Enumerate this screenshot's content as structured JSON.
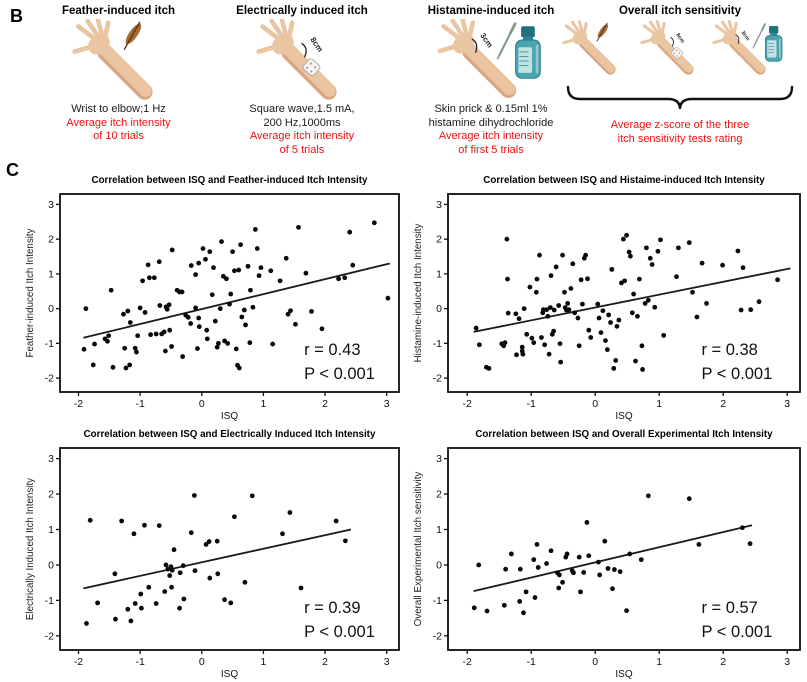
{
  "panel_b": {
    "label": "B",
    "accent_red": "#ee1111",
    "skin_color": "#eac5a2",
    "bottle_color": "#49a4b0",
    "items": [
      {
        "title": "Feather-induced itch",
        "icon": "arm-with-feather",
        "black": "Wrist to elbow;1 Hz",
        "red": "Average itch intensity\nof 10 trials",
        "icon_label": ""
      },
      {
        "title": "Electrically induced itch",
        "icon": "arm-with-electrode",
        "black": "Square wave,1.5 mA,\n200 Hz,1000ms",
        "red": "Average itch intensity\nof 5 trials",
        "icon_label": "8cm"
      },
      {
        "title": "Histamine-induced itch",
        "icon": "arm-with-skin-prick-and-bottle",
        "black": "Skin prick & 0.15ml 1%\nhistamine dihydrochloride",
        "red": "Average itch intensity\nof first 5 trials",
        "icon_label": "3cm"
      },
      {
        "title": "Overall itch sensitivity",
        "icon": "three-arms-with-brace",
        "black": "",
        "red": "Average z-score of the three\nitch sensitivity tests rating",
        "icon_label": ""
      }
    ]
  },
  "panel_c": {
    "label": "C"
  },
  "chart_data": [
    {
      "type": "scatter",
      "title": "Correlation between ISQ and Feather-induced Itch Intensity",
      "xlabel": "ISQ",
      "ylabel": "Feather-induced Itch Intensity",
      "xlim": [
        -2.3,
        3.2
      ],
      "ylim": [
        -2.4,
        3.3
      ],
      "xticks": [
        -2,
        -1,
        0,
        1,
        2,
        3
      ],
      "yticks": [
        -2,
        -1,
        0,
        1,
        2,
        3
      ],
      "grid": false,
      "legend": false,
      "r_label": "r = 0.43",
      "p_label": "P < 0.001",
      "trendline": {
        "x1": -1.92,
        "y1": -0.84,
        "x2": 3.05,
        "y2": 1.3
      },
      "points": [
        [
          -1.88,
          0.0
        ],
        [
          -1.91,
          -1.17
        ],
        [
          -1.74,
          -1.02
        ],
        [
          -1.76,
          -1.62
        ],
        [
          -1.57,
          -0.87
        ],
        [
          -1.53,
          -0.94
        ],
        [
          -1.51,
          -0.78
        ],
        [
          -1.44,
          -1.69
        ],
        [
          -1.47,
          0.53
        ],
        [
          -1.27,
          -0.16
        ],
        [
          -1.25,
          -1.14
        ],
        [
          -1.23,
          -1.71
        ],
        [
          -1.2,
          -0.07
        ],
        [
          -1.16,
          -0.4
        ],
        [
          -1.17,
          -1.62
        ],
        [
          -1.08,
          -1.14
        ],
        [
          -1.06,
          -1.25
        ],
        [
          -1.04,
          -0.78
        ],
        [
          -1.0,
          0.02
        ],
        [
          -0.96,
          0.8
        ],
        [
          -0.92,
          -0.11
        ],
        [
          -0.87,
          1.26
        ],
        [
          -0.85,
          0.89
        ],
        [
          -0.83,
          -0.75
        ],
        [
          -0.77,
          0.89
        ],
        [
          -0.74,
          -0.73
        ],
        [
          -0.69,
          1.35
        ],
        [
          -0.68,
          0.09
        ],
        [
          -0.65,
          -0.73
        ],
        [
          -0.61,
          -0.67
        ],
        [
          -0.59,
          -1.22
        ],
        [
          -0.58,
          0.05
        ],
        [
          -0.56,
          -0.02
        ],
        [
          -0.53,
          0.11
        ],
        [
          -0.52,
          -0.62
        ],
        [
          -0.49,
          -1.09
        ],
        [
          -0.48,
          1.69
        ],
        [
          -0.4,
          0.53
        ],
        [
          -0.36,
          0.48
        ],
        [
          -0.32,
          0.48
        ],
        [
          -0.31,
          -1.38
        ],
        [
          -0.26,
          -0.19
        ],
        [
          -0.22,
          -0.25
        ],
        [
          -0.18,
          -0.43
        ],
        [
          -0.17,
          1.24
        ],
        [
          -0.1,
          0.98
        ],
        [
          -0.1,
          0.02
        ],
        [
          -0.07,
          -1.15
        ],
        [
          -0.05,
          1.31
        ],
        [
          -0.05,
          -0.27
        ],
        [
          -0.04,
          -0.52
        ],
        [
          0.02,
          1.73
        ],
        [
          0.06,
          1.42
        ],
        [
          0.08,
          -0.62
        ],
        [
          0.09,
          -0.87
        ],
        [
          0.13,
          1.64
        ],
        [
          0.17,
          0.4
        ],
        [
          0.19,
          1.18
        ],
        [
          0.22,
          -0.36
        ],
        [
          0.25,
          -1.11
        ],
        [
          0.27,
          -1.0
        ],
        [
          0.3,
          0.0
        ],
        [
          0.32,
          1.93
        ],
        [
          0.35,
          0.93
        ],
        [
          0.37,
          -0.93
        ],
        [
          0.4,
          0.86
        ],
        [
          0.42,
          -1.0
        ],
        [
          0.45,
          0.13
        ],
        [
          0.47,
          0.42
        ],
        [
          0.5,
          1.64
        ],
        [
          0.53,
          1.09
        ],
        [
          0.56,
          -1.16
        ],
        [
          0.58,
          -1.63
        ],
        [
          0.6,
          1.11
        ],
        [
          0.61,
          -1.71
        ],
        [
          0.63,
          1.84
        ],
        [
          0.65,
          -0.24
        ],
        [
          0.69,
          -0.04
        ],
        [
          0.71,
          -0.47
        ],
        [
          0.75,
          1.22
        ],
        [
          0.78,
          -0.98
        ],
        [
          0.79,
          0.53
        ],
        [
          0.83,
          0.04
        ],
        [
          0.87,
          2.28
        ],
        [
          0.9,
          1.73
        ],
        [
          0.93,
          0.95
        ],
        [
          0.96,
          1.18
        ],
        [
          1.12,
          1.09
        ],
        [
          1.15,
          -1.02
        ],
        [
          1.27,
          0.8
        ],
        [
          1.37,
          1.45
        ],
        [
          1.4,
          -0.16
        ],
        [
          1.44,
          -0.06
        ],
        [
          1.52,
          -0.45
        ],
        [
          1.57,
          2.34
        ],
        [
          1.69,
          1.02
        ],
        [
          1.78,
          -0.08
        ],
        [
          1.95,
          -0.58
        ],
        [
          2.22,
          0.86
        ],
        [
          2.32,
          0.89
        ],
        [
          2.4,
          2.2
        ],
        [
          2.45,
          1.25
        ],
        [
          2.8,
          2.47
        ],
        [
          3.02,
          0.3
        ]
      ]
    },
    {
      "type": "scatter",
      "title": "Correlation between ISQ and Histaime-induced Itch Intensity",
      "xlabel": "ISQ",
      "ylabel": "Histamine-induced Itch Intensity",
      "xlim": [
        -2.3,
        3.2
      ],
      "ylim": [
        -2.4,
        3.3
      ],
      "xticks": [
        -2,
        -1,
        0,
        1,
        2,
        3
      ],
      "yticks": [
        -2,
        -1,
        0,
        1,
        2,
        3
      ],
      "grid": false,
      "legend": false,
      "r_label": "r = 0.38",
      "p_label": "P < 0.001",
      "trendline": {
        "x1": -1.9,
        "y1": -0.67,
        "x2": 3.05,
        "y2": 1.16
      },
      "points": [
        [
          -1.86,
          -0.56
        ],
        [
          -1.81,
          -1.04
        ],
        [
          -1.7,
          -1.69
        ],
        [
          -1.66,
          -1.72
        ],
        [
          -1.46,
          -1.01
        ],
        [
          -1.43,
          -1.07
        ],
        [
          -1.41,
          -0.98
        ],
        [
          -1.38,
          2.0
        ],
        [
          -1.37,
          0.85
        ],
        [
          -1.36,
          -0.13
        ],
        [
          -1.24,
          -0.15
        ],
        [
          -1.23,
          -1.33
        ],
        [
          -1.19,
          -0.29
        ],
        [
          -1.14,
          -1.11
        ],
        [
          -1.14,
          -1.22
        ],
        [
          -1.13,
          -1.31
        ],
        [
          -1.11,
          0.0
        ],
        [
          -1.07,
          -0.74
        ],
        [
          -1.02,
          0.62
        ],
        [
          -0.99,
          -0.85
        ],
        [
          -0.96,
          -0.98
        ],
        [
          -0.92,
          0.47
        ],
        [
          -0.91,
          0.85
        ],
        [
          -0.87,
          1.54
        ],
        [
          -0.84,
          -0.83
        ],
        [
          -0.82,
          -0.12
        ],
        [
          -0.81,
          -0.03
        ],
        [
          -0.79,
          -1.04
        ],
        [
          -0.76,
          -0.03
        ],
        [
          -0.74,
          -0.22
        ],
        [
          -0.72,
          -1.31
        ],
        [
          -0.7,
          0.03
        ],
        [
          -0.69,
          0.95
        ],
        [
          -0.67,
          -0.74
        ],
        [
          -0.65,
          -0.65
        ],
        [
          -0.64,
          -0.04
        ],
        [
          -0.61,
          1.2
        ],
        [
          -0.57,
          0.09
        ],
        [
          -0.55,
          -1.01
        ],
        [
          -0.54,
          -1.54
        ],
        [
          -0.51,
          1.54
        ],
        [
          -0.48,
          0.47
        ],
        [
          -0.47,
          0.03
        ],
        [
          -0.45,
          -0.04
        ],
        [
          -0.43,
          0.15
        ],
        [
          -0.41,
          -0.03
        ],
        [
          -0.38,
          0.58
        ],
        [
          -0.35,
          1.29
        ],
        [
          -0.32,
          -0.12
        ],
        [
          -0.27,
          -0.27
        ],
        [
          -0.25,
          -1.07
        ],
        [
          -0.22,
          0.83
        ],
        [
          -0.2,
          0.13
        ],
        [
          -0.17,
          1.45
        ],
        [
          -0.15,
          1.54
        ],
        [
          -0.12,
          0.86
        ],
        [
          -0.1,
          -0.62
        ],
        [
          -0.07,
          -0.83
        ],
        [
          0.04,
          0.13
        ],
        [
          0.06,
          -0.27
        ],
        [
          0.09,
          -0.69
        ],
        [
          0.12,
          -0.06
        ],
        [
          0.16,
          -0.92
        ],
        [
          0.19,
          -1.18
        ],
        [
          0.21,
          -0.18
        ],
        [
          0.24,
          -0.4
        ],
        [
          0.26,
          1.13
        ],
        [
          0.29,
          -1.72
        ],
        [
          0.32,
          -1.49
        ],
        [
          0.34,
          -0.51
        ],
        [
          0.37,
          -0.33
        ],
        [
          0.41,
          0.74
        ],
        [
          0.44,
          2.0
        ],
        [
          0.46,
          0.8
        ],
        [
          0.49,
          2.11
        ],
        [
          0.53,
          1.63
        ],
        [
          0.55,
          1.51
        ],
        [
          0.58,
          -0.12
        ],
        [
          0.6,
          0.42
        ],
        [
          0.63,
          -1.51
        ],
        [
          0.66,
          -0.22
        ],
        [
          0.69,
          0.85
        ],
        [
          0.73,
          -1.07
        ],
        [
          0.74,
          -1.75
        ],
        [
          0.78,
          0.15
        ],
        [
          0.8,
          1.75
        ],
        [
          0.83,
          0.24
        ],
        [
          0.86,
          1.45
        ],
        [
          0.89,
          1.27
        ],
        [
          0.93,
          0.04
        ],
        [
          0.98,
          1.65
        ],
        [
          1.02,
          1.98
        ],
        [
          1.07,
          -0.77
        ],
        [
          1.27,
          0.92
        ],
        [
          1.3,
          1.75
        ],
        [
          1.47,
          1.9
        ],
        [
          1.52,
          0.47
        ],
        [
          1.59,
          -0.24
        ],
        [
          1.67,
          1.31
        ],
        [
          1.74,
          0.15
        ],
        [
          1.99,
          1.25
        ],
        [
          2.23,
          1.66
        ],
        [
          2.28,
          -0.04
        ],
        [
          2.31,
          1.18
        ],
        [
          2.43,
          -0.03
        ],
        [
          2.56,
          0.2
        ],
        [
          2.85,
          0.83
        ]
      ]
    },
    {
      "type": "scatter",
      "title": "Correlation between ISQ and Electrically Induced Itch Intensity",
      "xlabel": "ISQ",
      "ylabel": "Electrically Induced Itch Intensity",
      "xlim": [
        -2.3,
        3.2
      ],
      "ylim": [
        -2.4,
        3.3
      ],
      "xticks": [
        -2,
        -1,
        0,
        1,
        2,
        3
      ],
      "yticks": [
        -2,
        -1,
        0,
        1,
        2,
        3
      ],
      "grid": false,
      "legend": false,
      "r_label": "r = 0.39",
      "p_label": "P < 0.001",
      "trendline": {
        "x1": -1.92,
        "y1": -0.66,
        "x2": 2.42,
        "y2": 1.0
      },
      "points": [
        [
          -1.81,
          1.26
        ],
        [
          -1.87,
          -1.65
        ],
        [
          -1.69,
          -1.07
        ],
        [
          -1.41,
          -0.25
        ],
        [
          -1.4,
          -1.53
        ],
        [
          -1.3,
          1.24
        ],
        [
          -1.2,
          -1.25
        ],
        [
          -1.15,
          -1.58
        ],
        [
          -1.1,
          0.88
        ],
        [
          -1.08,
          -1.09
        ],
        [
          -0.99,
          -0.82
        ],
        [
          -0.98,
          -1.22
        ],
        [
          -0.93,
          1.12
        ],
        [
          -0.86,
          -0.63
        ],
        [
          -0.74,
          -1.09
        ],
        [
          -0.69,
          1.11
        ],
        [
          -0.6,
          -0.75
        ],
        [
          -0.58,
          0.0
        ],
        [
          -0.55,
          -0.12
        ],
        [
          -0.52,
          -0.3
        ],
        [
          -0.5,
          -0.05
        ],
        [
          -0.48,
          -0.15
        ],
        [
          -0.45,
          0.43
        ],
        [
          -0.49,
          -0.63
        ],
        [
          -0.36,
          -1.22
        ],
        [
          -0.35,
          -0.22
        ],
        [
          -0.3,
          -0.02
        ],
        [
          -0.29,
          -0.96
        ],
        [
          -0.17,
          0.91
        ],
        [
          -0.12,
          1.96
        ],
        [
          -0.11,
          -0.16
        ],
        [
          0.07,
          0.58
        ],
        [
          0.12,
          0.66
        ],
        [
          0.13,
          -0.37
        ],
        [
          0.25,
          0.67
        ],
        [
          0.26,
          -0.25
        ],
        [
          0.37,
          -0.98
        ],
        [
          0.47,
          -1.07
        ],
        [
          0.53,
          1.36
        ],
        [
          0.7,
          -0.49
        ],
        [
          0.82,
          1.95
        ],
        [
          1.31,
          0.88
        ],
        [
          1.43,
          1.48
        ],
        [
          1.61,
          -0.65
        ],
        [
          2.18,
          1.24
        ],
        [
          2.33,
          0.68
        ]
      ]
    },
    {
      "type": "scatter",
      "title": "Correlation between ISQ and Overall Experimental Itch Intensity",
      "xlabel": "ISQ",
      "ylabel": "Overall Experimental Itch sensitivity",
      "xlim": [
        -2.3,
        3.2
      ],
      "ylim": [
        -2.4,
        3.3
      ],
      "xticks": [
        -2,
        -1,
        0,
        1,
        2,
        3
      ],
      "yticks": [
        -2,
        -1,
        0,
        1,
        2,
        3
      ],
      "grid": false,
      "legend": false,
      "r_label": "r = 0.57",
      "p_label": "P < 0.001",
      "trendline": {
        "x1": -1.9,
        "y1": -0.74,
        "x2": 2.45,
        "y2": 1.12
      },
      "points": [
        [
          -1.82,
          0.0
        ],
        [
          -1.89,
          -1.21
        ],
        [
          -1.69,
          -1.3
        ],
        [
          -1.42,
          -1.14
        ],
        [
          -1.4,
          -0.12
        ],
        [
          -1.31,
          0.31
        ],
        [
          -1.18,
          -1.03
        ],
        [
          -1.17,
          -0.12
        ],
        [
          -1.12,
          -1.35
        ],
        [
          -1.08,
          -0.76
        ],
        [
          -0.96,
          0.15
        ],
        [
          -0.94,
          -0.92
        ],
        [
          -0.91,
          0.58
        ],
        [
          -0.89,
          -0.07
        ],
        [
          -0.76,
          0.04
        ],
        [
          -0.69,
          0.4
        ],
        [
          -0.59,
          -0.22
        ],
        [
          -0.56,
          -0.28
        ],
        [
          -0.57,
          -0.65
        ],
        [
          -0.51,
          -0.49
        ],
        [
          -0.46,
          0.22
        ],
        [
          -0.44,
          0.31
        ],
        [
          -0.36,
          -0.16
        ],
        [
          -0.34,
          -0.22
        ],
        [
          -0.25,
          0.22
        ],
        [
          -0.23,
          -0.76
        ],
        [
          -0.18,
          -0.21
        ],
        [
          -0.13,
          1.2
        ],
        [
          -0.1,
          0.26
        ],
        [
          0.05,
          0.08
        ],
        [
          0.07,
          -0.28
        ],
        [
          0.15,
          0.67
        ],
        [
          0.2,
          -0.1
        ],
        [
          0.27,
          -0.67
        ],
        [
          0.3,
          -0.13
        ],
        [
          0.39,
          -0.19
        ],
        [
          0.49,
          -1.29
        ],
        [
          0.54,
          0.31
        ],
        [
          0.72,
          0.15
        ],
        [
          0.83,
          1.95
        ],
        [
          1.47,
          1.87
        ],
        [
          1.62,
          0.58
        ],
        [
          2.3,
          1.05
        ],
        [
          2.42,
          0.6
        ]
      ]
    }
  ]
}
